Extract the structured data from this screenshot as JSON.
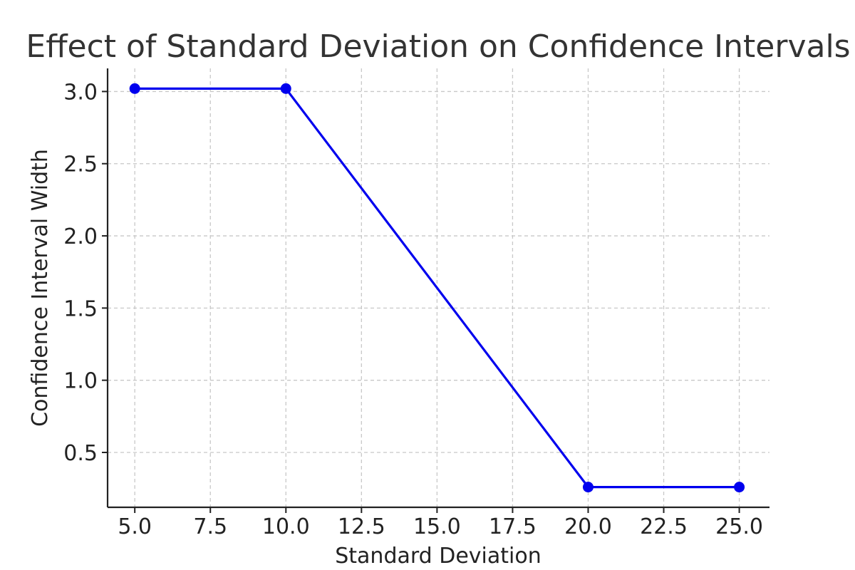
{
  "chart_data": {
    "type": "line",
    "title": "Effect of Standard Deviation on Confidence Intervals",
    "xlabel": "Standard Deviation",
    "ylabel": "Confidence Interval Width",
    "xlim": [
      4.1,
      26.0
    ],
    "ylim": [
      0.12,
      3.16
    ],
    "grid": true,
    "x_ticks": [
      5.0,
      7.5,
      10.0,
      12.5,
      15.0,
      17.5,
      20.0,
      22.5,
      25.0
    ],
    "x_tick_labels": [
      "5.0",
      "7.5",
      "10.0",
      "12.5",
      "15.0",
      "17.5",
      "20.0",
      "22.5",
      "25.0"
    ],
    "y_ticks": [
      0.5,
      1.0,
      1.5,
      2.0,
      2.5,
      3.0
    ],
    "y_tick_labels": [
      "0.5",
      "1.0",
      "1.5",
      "2.0",
      "2.5",
      "3.0"
    ],
    "series": [
      {
        "name": "Confidence Interval Width",
        "color": "#0000ee",
        "marker": "circle",
        "x": [
          5,
          10,
          20,
          25
        ],
        "values": [
          3.02,
          3.02,
          0.26,
          0.26
        ]
      }
    ]
  }
}
